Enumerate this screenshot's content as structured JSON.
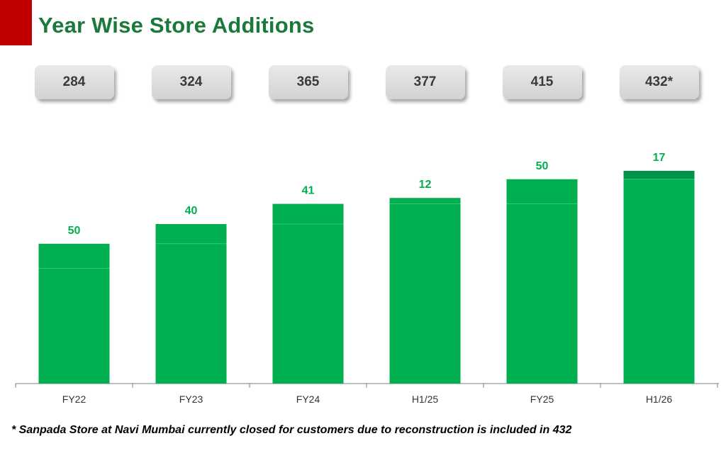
{
  "header": {
    "title": "Year Wise Store Additions"
  },
  "colors": {
    "accent_red": "#c00000",
    "title_green": "#1a7a3a",
    "bar_green": "#00b050",
    "bar_dark_green": "#00944a",
    "label_green": "#00b050"
  },
  "chart_data": {
    "type": "bar",
    "stacked": true,
    "categories": [
      "FY22",
      "FY23",
      "FY24",
      "H1/25",
      "FY25",
      "H1/26"
    ],
    "totals": [
      "284",
      "324",
      "365",
      "377",
      "415",
      "432*"
    ],
    "series": [
      {
        "values": [
          234,
          284,
          324,
          365,
          365,
          415
        ]
      },
      {
        "values": [
          50,
          40,
          41,
          12,
          50,
          17
        ]
      }
    ],
    "data_labels": [
      "50",
      "40",
      "41",
      "12",
      "50",
      "17"
    ],
    "ylim": [
      0,
      460
    ],
    "grid": false
  },
  "footnote": "* Sanpada Store at Navi Mumbai currently closed for customers due to reconstruction is included in 432"
}
